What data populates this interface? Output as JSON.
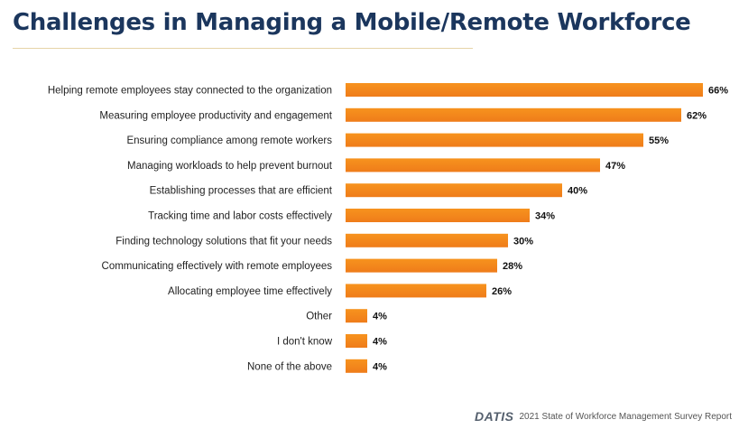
{
  "title": "Challenges in Managing a Mobile/Remote Workforce",
  "colors": {
    "bar": "#f7931e",
    "bar_dark": "#ef7c1a",
    "title": "#1b365d",
    "label": "#222222"
  },
  "footer": {
    "logo": "DATIS",
    "source": "2021 State of Workforce Management Survey Report"
  },
  "chart_data": {
    "type": "bar",
    "orientation": "horizontal",
    "categories": [
      "Helping remote employees stay connected to the organization",
      "Measuring employee productivity and engagement",
      "Ensuring compliance among remote workers",
      "Managing workloads to help prevent burnout",
      "Establishing processes that are efficient",
      "Tracking time and labor costs effectively",
      "Finding technology solutions that fit your needs",
      "Communicating effectively with remote employees",
      "Allocating employee time effectively",
      "Other",
      "I don't know",
      "None of the above"
    ],
    "values": [
      66,
      62,
      55,
      47,
      40,
      34,
      30,
      28,
      26,
      4,
      4,
      4
    ],
    "value_labels": [
      "66%",
      "62%",
      "55%",
      "47%",
      "40%",
      "34%",
      "30%",
      "28%",
      "26%",
      "4%",
      "4%",
      "4%"
    ],
    "unit": "%",
    "grid": false,
    "legend": "none"
  }
}
